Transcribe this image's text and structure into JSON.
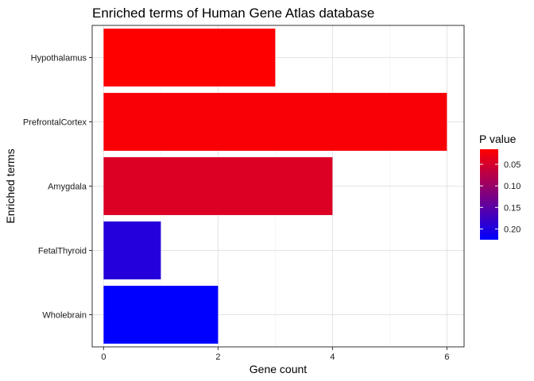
{
  "chart_data": {
    "type": "bar",
    "orientation": "horizontal",
    "title": "Enriched terms of Human Gene Atlas database",
    "xlabel": "Gene count",
    "ylabel": "Enriched terms",
    "xlim": [
      -0.2,
      6.3
    ],
    "x_ticks": [
      0,
      2,
      4,
      6
    ],
    "grid": true,
    "categories": [
      "Hypothalamus",
      "PrefrontalCortex",
      "Amygdala",
      "FetalThyroid",
      "Wholebrain"
    ],
    "values": [
      3,
      6,
      4,
      1,
      2
    ],
    "p_values": [
      0.015,
      0.02,
      0.045,
      0.195,
      0.225
    ],
    "legend": {
      "title": "P value",
      "position": "right",
      "range": [
        0.015,
        0.225
      ],
      "ticks": [
        0.05,
        0.1,
        0.15,
        0.2
      ],
      "tick_labels": [
        "0.05",
        "0.10",
        "0.15",
        "0.20"
      ],
      "low_color": "#ff0000",
      "high_color": "#0000ff"
    }
  }
}
